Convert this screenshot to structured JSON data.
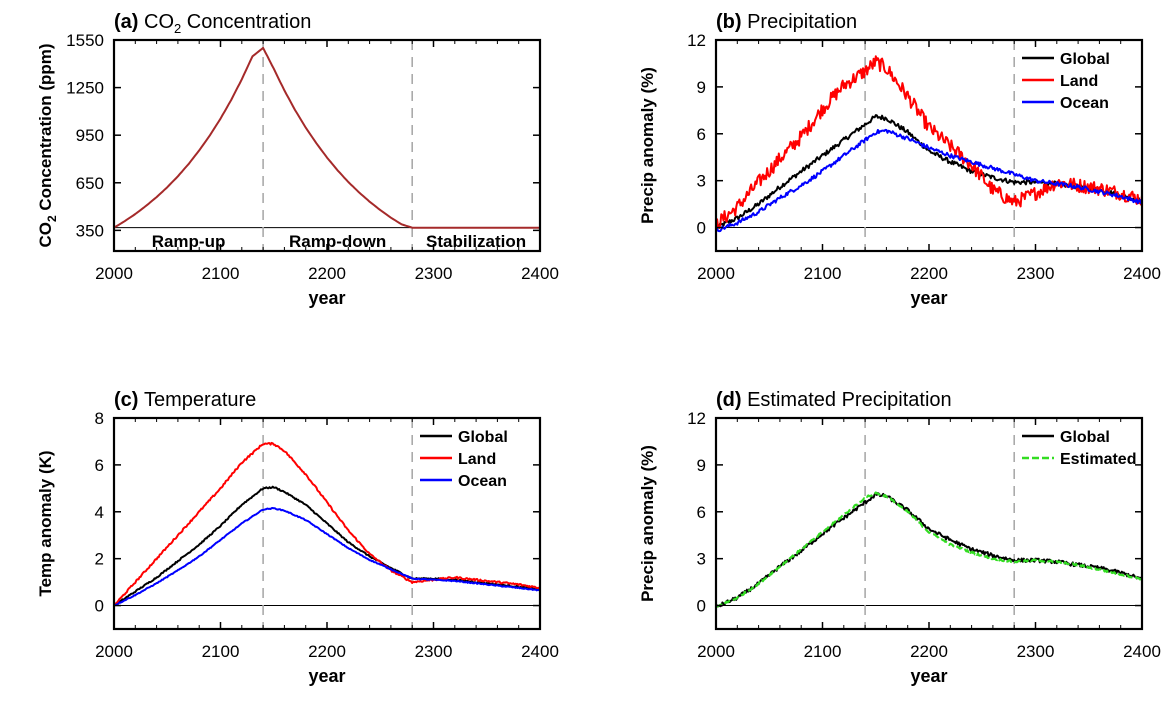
{
  "chart_data": [
    {
      "type": "line",
      "panel_label": "(a)",
      "title_main": "CO",
      "title_sub": "2",
      "title_rest": " Concentration",
      "xlabel": "year",
      "ylabel_main": "CO",
      "ylabel_sub": "2",
      "ylabel_rest": " Concentration (ppm)",
      "xlim": [
        2000,
        2400
      ],
      "ylim": [
        220,
        1550
      ],
      "xticks": [
        "2000",
        "2100",
        "2200",
        "2300",
        "2400"
      ],
      "yticks": [
        "350",
        "650",
        "950",
        "1250",
        "1550"
      ],
      "vlines": [
        2140,
        2280
      ],
      "hline": 367,
      "phase_labels": [
        {
          "text": "Ramp-up",
          "x": 2070
        },
        {
          "text": "Ramp-down",
          "x": 2210
        },
        {
          "text": "Stabilization",
          "x": 2340
        }
      ],
      "series": [
        {
          "color": "#a52a2a",
          "x": [
            2000,
            2010,
            2020,
            2030,
            2040,
            2050,
            2060,
            2070,
            2080,
            2090,
            2100,
            2110,
            2120,
            2130,
            2140,
            2150,
            2160,
            2170,
            2180,
            2190,
            2200,
            2210,
            2220,
            2230,
            2240,
            2250,
            2260,
            2270,
            2280,
            2300,
            2350,
            2400
          ],
          "y": [
            367,
            408,
            453,
            504,
            560,
            622,
            691,
            768,
            854,
            949,
            1054,
            1172,
            1302,
            1447,
            1500,
            1369,
            1232,
            1109,
            998,
            899,
            809,
            728,
            655,
            590,
            531,
            478,
            430,
            388,
            367,
            367,
            367,
            367
          ]
        }
      ]
    },
    {
      "type": "line",
      "panel_label": "(b)",
      "title_main": "Precipitation",
      "xlabel": "year",
      "ylabel": "Precip anomaly (%)",
      "xlim": [
        2000,
        2400
      ],
      "ylim": [
        -1.5,
        12
      ],
      "xticks": [
        "2000",
        "2100",
        "2200",
        "2300",
        "2400"
      ],
      "yticks": [
        "0",
        "3",
        "6",
        "9",
        "12"
      ],
      "vlines": [
        2140,
        2280
      ],
      "legend_position": "top-right",
      "series": [
        {
          "name": "Global",
          "color": "#000000",
          "noise": 0.15,
          "x": [
            2000,
            2020,
            2040,
            2060,
            2080,
            2100,
            2120,
            2140,
            2150,
            2160,
            2180,
            2200,
            2220,
            2240,
            2260,
            2280,
            2300,
            2320,
            2340,
            2360,
            2380,
            2400
          ],
          "y": [
            0.0,
            0.6,
            1.5,
            2.6,
            3.6,
            4.6,
            5.6,
            6.6,
            7.1,
            7.0,
            6.1,
            4.9,
            4.2,
            3.6,
            3.2,
            2.9,
            2.9,
            2.8,
            2.6,
            2.4,
            2.1,
            1.7
          ]
        },
        {
          "name": "Land",
          "color": "#ff0000",
          "noise": 0.45,
          "x": [
            2000,
            2020,
            2040,
            2060,
            2080,
            2100,
            2120,
            2140,
            2150,
            2160,
            2180,
            2200,
            2220,
            2240,
            2260,
            2280,
            2300,
            2320,
            2340,
            2360,
            2380,
            2400
          ],
          "y": [
            0.2,
            1.3,
            2.9,
            4.4,
            5.8,
            7.6,
            9.1,
            10.0,
            10.6,
            10.2,
            8.4,
            6.4,
            5.2,
            4.0,
            2.4,
            1.6,
            2.2,
            2.9,
            2.7,
            2.5,
            2.2,
            1.8
          ]
        },
        {
          "name": "Ocean",
          "color": "#0000ff",
          "noise": 0.13,
          "x": [
            2000,
            2020,
            2040,
            2060,
            2080,
            2100,
            2120,
            2140,
            2150,
            2160,
            2180,
            2200,
            2220,
            2240,
            2260,
            2280,
            2300,
            2320,
            2340,
            2360,
            2380,
            2400
          ],
          "y": [
            -0.2,
            0.3,
            1.0,
            1.9,
            2.7,
            3.6,
            4.6,
            5.6,
            6.1,
            6.2,
            5.7,
            5.1,
            4.6,
            4.2,
            3.8,
            3.4,
            3.0,
            2.8,
            2.6,
            2.3,
            2.0,
            1.6
          ]
        }
      ]
    },
    {
      "type": "line",
      "panel_label": "(c)",
      "title_main": "Temperature",
      "xlabel": "year",
      "ylabel": "Temp anomaly (K)",
      "xlim": [
        2000,
        2400
      ],
      "ylim": [
        -1.0,
        8
      ],
      "xticks": [
        "2000",
        "2100",
        "2200",
        "2300",
        "2400"
      ],
      "yticks": [
        "0",
        "2",
        "4",
        "6",
        "8"
      ],
      "vlines": [
        2140,
        2280
      ],
      "legend_position": "top-right",
      "series": [
        {
          "name": "Global",
          "color": "#000000",
          "noise": 0.03,
          "x": [
            2000,
            2020,
            2040,
            2060,
            2080,
            2100,
            2120,
            2140,
            2150,
            2160,
            2180,
            2200,
            2220,
            2240,
            2260,
            2280,
            2300,
            2320,
            2340,
            2360,
            2380,
            2400
          ],
          "y": [
            0.0,
            0.6,
            1.2,
            1.9,
            2.6,
            3.4,
            4.3,
            5.0,
            5.05,
            4.85,
            4.3,
            3.5,
            2.7,
            2.1,
            1.6,
            1.15,
            1.15,
            1.1,
            1.0,
            0.9,
            0.8,
            0.7
          ]
        },
        {
          "name": "Land",
          "color": "#ff0000",
          "noise": 0.04,
          "x": [
            2000,
            2020,
            2040,
            2060,
            2080,
            2100,
            2120,
            2140,
            2150,
            2160,
            2180,
            2200,
            2220,
            2240,
            2260,
            2280,
            2300,
            2320,
            2340,
            2360,
            2380,
            2400
          ],
          "y": [
            0.0,
            1.0,
            2.0,
            3.0,
            4.0,
            5.0,
            6.1,
            6.9,
            6.9,
            6.6,
            5.6,
            4.4,
            3.2,
            2.2,
            1.5,
            1.0,
            1.1,
            1.2,
            1.1,
            1.0,
            0.9,
            0.75
          ]
        },
        {
          "name": "Ocean",
          "color": "#0000ff",
          "noise": 0.02,
          "x": [
            2000,
            2020,
            2040,
            2060,
            2080,
            2100,
            2120,
            2140,
            2150,
            2160,
            2180,
            2200,
            2220,
            2240,
            2260,
            2280,
            2300,
            2320,
            2340,
            2360,
            2380,
            2400
          ],
          "y": [
            0.0,
            0.45,
            0.95,
            1.5,
            2.1,
            2.8,
            3.5,
            4.1,
            4.15,
            4.05,
            3.65,
            3.05,
            2.45,
            1.95,
            1.55,
            1.15,
            1.1,
            1.05,
            0.95,
            0.85,
            0.75,
            0.65
          ]
        }
      ]
    },
    {
      "type": "line",
      "panel_label": "(d)",
      "title_main": "Estimated Precipitation",
      "xlabel": "year",
      "ylabel": "Precip anomaly (%)",
      "xlim": [
        2000,
        2400
      ],
      "ylim": [
        -1.5,
        12
      ],
      "xticks": [
        "2000",
        "2100",
        "2200",
        "2300",
        "2400"
      ],
      "yticks": [
        "0",
        "3",
        "6",
        "9",
        "12"
      ],
      "vlines": [
        2140,
        2280
      ],
      "legend_position": "top-right",
      "series": [
        {
          "name": "Global",
          "color": "#000000",
          "noise": 0.12,
          "x": [
            2000,
            2020,
            2040,
            2060,
            2080,
            2100,
            2120,
            2140,
            2150,
            2160,
            2180,
            2200,
            2220,
            2240,
            2260,
            2280,
            2300,
            2320,
            2340,
            2360,
            2380,
            2400
          ],
          "y": [
            -0.1,
            0.5,
            1.4,
            2.5,
            3.5,
            4.6,
            5.6,
            6.6,
            7.1,
            7.0,
            6.1,
            4.9,
            4.2,
            3.6,
            3.2,
            2.9,
            2.9,
            2.8,
            2.6,
            2.4,
            2.1,
            1.7
          ]
        },
        {
          "name": "Estimated",
          "color": "#33dd22",
          "dashed": true,
          "noise": 0.06,
          "x": [
            2000,
            2020,
            2040,
            2060,
            2080,
            2100,
            2120,
            2140,
            2150,
            2160,
            2180,
            2200,
            2220,
            2240,
            2260,
            2280,
            2300,
            2320,
            2340,
            2360,
            2380,
            2400
          ],
          "y": [
            -0.1,
            0.5,
            1.4,
            2.5,
            3.6,
            4.7,
            5.8,
            6.9,
            7.2,
            7.0,
            6.0,
            4.7,
            3.9,
            3.4,
            3.0,
            2.8,
            2.9,
            2.8,
            2.6,
            2.3,
            2.0,
            1.7
          ]
        }
      ]
    }
  ]
}
